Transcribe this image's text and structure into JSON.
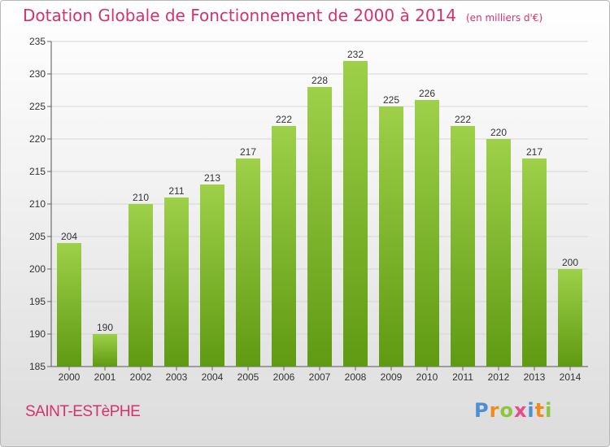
{
  "chart_data": {
    "type": "bar",
    "title": "Dotation Globale de Fonctionnement de 2000 à 2014",
    "subtitle": "(en milliers d'€)",
    "categories": [
      "2000",
      "2001",
      "2002",
      "2003",
      "2004",
      "2005",
      "2006",
      "2007",
      "2008",
      "2009",
      "2010",
      "2011",
      "2012",
      "2013",
      "2014"
    ],
    "values": [
      204,
      190,
      210,
      211,
      213,
      217,
      222,
      228,
      232,
      225,
      226,
      222,
      220,
      217,
      200
    ],
    "ylim": [
      185,
      235
    ],
    "yticks": [
      185,
      190,
      195,
      200,
      205,
      210,
      215,
      220,
      225,
      230,
      235
    ],
    "grid": true,
    "colors": {
      "bar_light": "#9ed04a",
      "bar_dark": "#5f9a12",
      "title": "#d4326f"
    }
  },
  "commune": "SAINT-ESTèPHE",
  "logo": {
    "letters": [
      "P",
      "r",
      "o",
      "x",
      "i",
      "t",
      "i"
    ],
    "colors": [
      "#4b8fd6",
      "#f08a1d",
      "#8cc63f",
      "#e84a8a",
      "#4b8fd6",
      "#f08a1d",
      "#8cc63f"
    ]
  }
}
